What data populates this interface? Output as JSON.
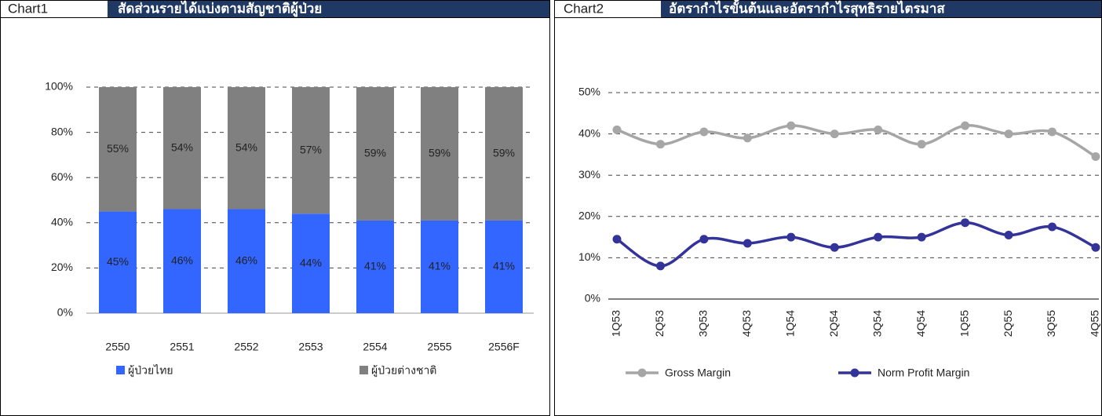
{
  "chart_data": [
    {
      "type": "bar",
      "stacked": true,
      "label": "Chart1",
      "title": "สัดส่วนรายได้แบ่งตามสัญชาติผู้ป่วย",
      "categories": [
        "2550",
        "2551",
        "2552",
        "2553",
        "2554",
        "2555",
        "2556F"
      ],
      "series": [
        {
          "name": "ผู้ป่วยไทย",
          "color": "#3366ff",
          "values": [
            45,
            46,
            46,
            44,
            41,
            41,
            41
          ],
          "value_labels": [
            "45%",
            "46%",
            "46%",
            "44%",
            "41%",
            "41%",
            "41%"
          ]
        },
        {
          "name": "ผู้ป่วยต่างชาติ",
          "color": "#808080",
          "values": [
            55,
            54,
            54,
            57,
            59,
            59,
            59
          ],
          "value_labels": [
            "55%",
            "54%",
            "54%",
            "57%",
            "59%",
            "59%",
            "59%"
          ]
        }
      ],
      "ylim": [
        0,
        100
      ],
      "yticks": [
        {
          "value": 0,
          "label": "0%"
        },
        {
          "value": 20,
          "label": "20%"
        },
        {
          "value": 40,
          "label": "40%"
        },
        {
          "value": 60,
          "label": "60%"
        },
        {
          "value": 80,
          "label": "80%"
        },
        {
          "value": 100,
          "label": "100%"
        }
      ],
      "grid": true
    },
    {
      "type": "line",
      "label": "Chart2",
      "title": "อัตรากำไรขั้นต้นและอัตรากำไรสุทธิรายไตรมาส",
      "categories": [
        "1Q53",
        "2Q53",
        "3Q53",
        "4Q53",
        "1Q54",
        "2Q54",
        "3Q54",
        "4Q54",
        "1Q55",
        "2Q55",
        "3Q55",
        "4Q55"
      ],
      "series": [
        {
          "name": "Gross Margin",
          "color": "#a6a6a6",
          "values": [
            41,
            37.5,
            40.5,
            39,
            42,
            40,
            41,
            37.5,
            42,
            40,
            40.5,
            34.5
          ]
        },
        {
          "name": "Norm Profit Margin",
          "color": "#333399",
          "values": [
            14.5,
            8,
            14.5,
            13.5,
            15,
            12.5,
            15,
            15,
            18.5,
            15.5,
            17.5,
            12.5
          ]
        }
      ],
      "ylim": [
        0,
        50
      ],
      "yticks": [
        {
          "value": 0,
          "label": "0%"
        },
        {
          "value": 10,
          "label": "10%"
        },
        {
          "value": 20,
          "label": "20%"
        },
        {
          "value": 30,
          "label": "30%"
        },
        {
          "value": 40,
          "label": "40%"
        },
        {
          "value": 50,
          "label": "50%"
        }
      ],
      "grid": true
    }
  ]
}
